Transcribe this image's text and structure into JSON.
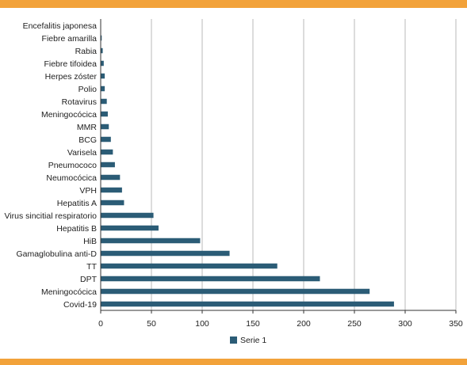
{
  "colors": {
    "accent_bar": "#f2a23a",
    "series": "#2b5c76",
    "grid": "#b9b9b9",
    "axis": "#333333"
  },
  "chart_data": {
    "type": "bar",
    "orientation": "horizontal",
    "categories": [
      "Encefalitis japonesa",
      "Fiebre amarilla",
      "Rabia",
      "Fiebre tifoidea",
      "Herpes zóster",
      "Polio",
      "Rotavirus",
      "Meningocócica",
      "MMR",
      "BCG",
      "Varisela",
      "Pneumococo",
      "Neumocócica",
      "VPH",
      "Hepatitis A",
      "Virus sincitial respiratorio",
      "Hepatitis B",
      "HiB",
      "Gamaglobulina anti-D",
      "TT",
      "DPT",
      "Meningocócica",
      "Covid-19"
    ],
    "series": [
      {
        "name": "Serie 1",
        "values": [
          0,
          1,
          2,
          3,
          4,
          4,
          6,
          7,
          8,
          10,
          12,
          14,
          19,
          21,
          23,
          52,
          57,
          98,
          127,
          174,
          216,
          265,
          289
        ]
      }
    ],
    "xlim": [
      0,
      350
    ],
    "xticks": [
      0,
      50,
      100,
      150,
      200,
      250,
      300,
      350
    ],
    "grid": "vertical",
    "legend": "bottom"
  }
}
